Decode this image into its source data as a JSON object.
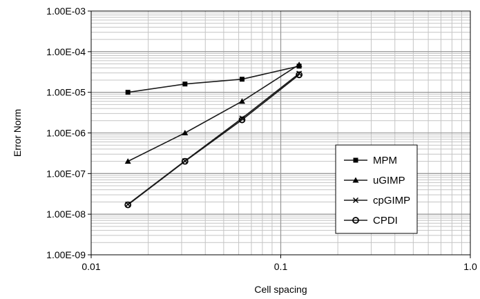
{
  "chart_data": {
    "type": "line",
    "xlabel": "Cell spacing",
    "ylabel": "Error Norm",
    "xscale": "log",
    "yscale": "log",
    "xlim": [
      0.01,
      1.0
    ],
    "ylim": [
      1e-09,
      0.001
    ],
    "x_tick_labels": [
      "0.01",
      "0.1",
      "1.0"
    ],
    "y_tick_labels": [
      "1.00E-09",
      "1.00E-08",
      "1.00E-07",
      "1.00E-06",
      "1.00E-05",
      "1.00E-04",
      "1.00E-03"
    ],
    "grid": true,
    "legend_position": "bottom-right",
    "series": [
      {
        "name": "MPM",
        "marker": "square",
        "x": [
          0.015625,
          0.03125,
          0.0625,
          0.125
        ],
        "y": [
          1e-05,
          1.6e-05,
          2.1e-05,
          4.4e-05
        ]
      },
      {
        "name": "uGIMP",
        "marker": "triangle",
        "x": [
          0.015625,
          0.03125,
          0.0625,
          0.125
        ],
        "y": [
          2e-07,
          1e-06,
          6e-06,
          4.8e-05
        ]
      },
      {
        "name": "cpGIMP",
        "marker": "x",
        "x": [
          0.015625,
          0.03125,
          0.0625,
          0.125
        ],
        "y": [
          1.75e-08,
          2.05e-07,
          2.3e-06,
          2.9e-05
        ]
      },
      {
        "name": "CPDI",
        "marker": "circle",
        "x": [
          0.015625,
          0.03125,
          0.0625,
          0.125
        ],
        "y": [
          1.7e-08,
          2e-07,
          2.1e-06,
          2.7e-05
        ]
      }
    ]
  }
}
